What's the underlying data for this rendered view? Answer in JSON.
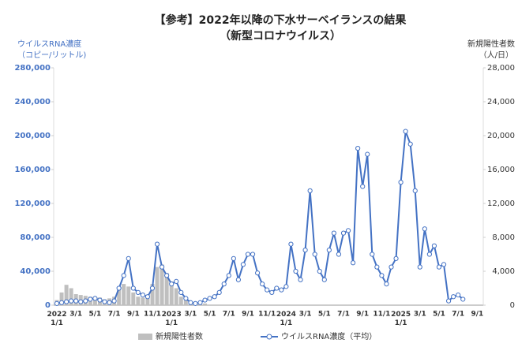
{
  "chart_data": {
    "type": "bar-line",
    "title": "【参考】2022年以降の下水サーベイランスの結果",
    "subtitle": "（新型コロナウイルス）",
    "y_label": "ウイルスRNA濃度",
    "y_unit": "（コピー/リットル)",
    "y2_label": "新規陽性者数",
    "y2_unit": "（人/日）",
    "categories": [
      "2022\n1/1",
      null,
      null,
      null,
      "3/1",
      null,
      null,
      null,
      "5/1",
      null,
      null,
      null,
      "7/1",
      null,
      null,
      null,
      "9/1",
      null,
      null,
      null,
      "11/1",
      null,
      null,
      null,
      "2023\n1/1",
      null,
      null,
      null,
      "3/1",
      null,
      null,
      null,
      "5/1",
      null,
      null,
      null,
      "7/1",
      null,
      null,
      null,
      "9/1",
      null,
      null,
      null,
      "11/1",
      null,
      null,
      null,
      "2024\n1/1",
      null,
      null,
      null,
      "3/1",
      null,
      null,
      null,
      "5/1",
      null,
      null,
      null,
      "7/1",
      null,
      null,
      null,
      "9/1",
      null,
      null,
      null,
      "11/1",
      null,
      null,
      null,
      "2025\n1/1",
      null,
      null,
      null,
      "3/1",
      null,
      null,
      null,
      "5/1",
      null,
      null,
      null,
      "7/1",
      null,
      null,
      null,
      "9/1",
      null
    ],
    "series": [
      {
        "name": "新規陽性者数",
        "color": "#bfbfbf",
        "kind": "bar",
        "axis": "y2",
        "values": [
          600,
          1500,
          2400,
          2000,
          1300,
          1200,
          1100,
          1000,
          1000,
          900,
          700,
          800,
          1000,
          1800,
          2500,
          2200,
          1500,
          1000,
          900,
          1100,
          2500,
          4500,
          4800,
          3800,
          2800,
          2000,
          1000,
          600,
          400,
          300,
          200,
          200,
          null,
          null,
          null,
          null,
          null,
          null,
          null,
          null,
          null,
          null,
          null,
          null,
          null,
          null,
          null,
          null,
          null,
          null,
          null,
          null,
          null,
          null,
          null,
          null,
          null,
          null,
          null,
          null,
          null,
          null,
          null,
          null,
          null,
          null,
          null,
          null,
          null,
          null,
          null,
          null,
          null,
          null,
          null,
          null,
          null,
          null,
          null,
          null,
          null,
          null,
          null,
          null,
          null,
          null,
          null,
          null,
          null,
          null
        ]
      },
      {
        "name": "ウイルスRNA濃度（平均）",
        "color": "#4472c4",
        "kind": "line",
        "axis": "y",
        "values": [
          2000,
          3000,
          4000,
          5000,
          5000,
          4000,
          5000,
          7000,
          8000,
          6000,
          4000,
          3000,
          5000,
          20000,
          35000,
          55000,
          20000,
          15000,
          12000,
          10000,
          20000,
          72000,
          45000,
          35000,
          25000,
          28000,
          15000,
          8000,
          3000,
          2000,
          3000,
          6000,
          8000,
          10000,
          15000,
          25000,
          35000,
          55000,
          30000,
          48000,
          60000,
          60000,
          38000,
          25000,
          18000,
          15000,
          20000,
          18000,
          22000,
          72000,
          40000,
          30000,
          65000,
          135000,
          60000,
          40000,
          30000,
          65000,
          85000,
          60000,
          85000,
          88000,
          50000,
          185000,
          140000,
          178000,
          60000,
          45000,
          35000,
          25000,
          45000,
          55000,
          145000,
          205000,
          190000,
          135000,
          45000,
          90000,
          60000,
          70000,
          45000,
          48000,
          5000,
          10000,
          12000,
          7000,
          null,
          null,
          null,
          null
        ]
      }
    ],
    "ylim": [
      0,
      280000
    ],
    "yticks": [
      0,
      {
        "value": 40000,
        "label": "40,000"
      },
      {
        "value": 80000,
        "label": "80,000"
      },
      {
        "value": 120000,
        "label": "120,000"
      },
      {
        "value": 160000,
        "label": "160,000"
      },
      {
        "value": 200000,
        "label": "200,000"
      },
      {
        "value": 240000,
        "label": "240,000"
      },
      {
        "value": 280000,
        "label": "280,000"
      }
    ],
    "y2lim": [
      0,
      28000
    ],
    "y2ticks": [
      0,
      {
        "value": 4000,
        "label": "4,000"
      },
      {
        "value": 8000,
        "label": "8,000"
      },
      {
        "value": 12000,
        "label": "12,000"
      },
      {
        "value": 16000,
        "label": "16,000"
      },
      {
        "value": 20000,
        "label": "20,000"
      },
      {
        "value": 24000,
        "label": "24,000"
      },
      {
        "value": 28000,
        "label": "28,000"
      }
    ],
    "grid": false,
    "legend": "bottom"
  }
}
